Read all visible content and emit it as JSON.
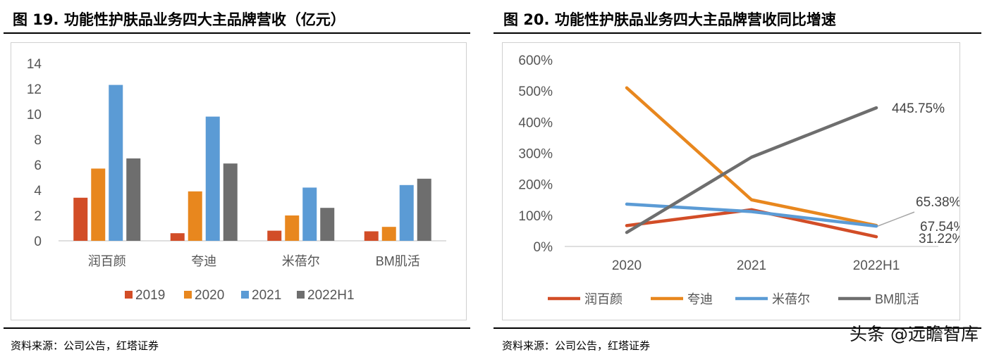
{
  "left": {
    "title": "图 19. 功能性护肤品业务四大主品牌营收（亿元）",
    "source": "资料来源：公司公告，红塔证券"
  },
  "right": {
    "title": "图 20. 功能性护肤品业务四大主品牌营收同比增速",
    "source": "资料来源：公司公告，红塔证券"
  },
  "watermark": "头条 @远瞻智库",
  "chart_data": [
    {
      "type": "bar",
      "categories": [
        "润百颜",
        "夸迪",
        "米蓓尔",
        "BM肌活"
      ],
      "series": [
        {
          "name": "2019",
          "values": [
            3.4,
            0.6,
            0.8,
            0.75
          ],
          "color": "#D24D27"
        },
        {
          "name": "2020",
          "values": [
            5.7,
            3.9,
            2.0,
            1.1
          ],
          "color": "#E8871E"
        },
        {
          "name": "2021",
          "values": [
            12.3,
            9.8,
            4.2,
            4.4
          ],
          "color": "#5B9BD5"
        },
        {
          "name": "2022H1",
          "values": [
            6.5,
            6.1,
            2.6,
            4.9
          ],
          "color": "#6E6E6E"
        }
      ],
      "yticks": [
        "0",
        "2",
        "4",
        "6",
        "8",
        "10",
        "12",
        "14"
      ],
      "ylim": [
        0,
        14
      ],
      "legend_position": "bottom",
      "grid": false
    },
    {
      "type": "line",
      "x": [
        "2020",
        "2021",
        "2022H1"
      ],
      "series": [
        {
          "name": "润百颜",
          "values": [
            67,
            118,
            31.22
          ],
          "color": "#D24D27"
        },
        {
          "name": "夸迪",
          "values": [
            510,
            150,
            67.54
          ],
          "color": "#E8871E"
        },
        {
          "name": "米蓓尔",
          "values": [
            136,
            112,
            65.38
          ],
          "color": "#5B9BD5"
        },
        {
          "name": "BM肌活",
          "values": [
            45,
            287,
            445.75
          ],
          "color": "#6E6E6E"
        }
      ],
      "yticks": [
        "0%",
        "100%",
        "200%",
        "300%",
        "400%",
        "500%",
        "600%"
      ],
      "ylim": [
        0,
        600
      ],
      "data_labels": [
        "445.75%",
        "65.38%",
        "67.54%",
        "31.22%"
      ],
      "legend_position": "bottom",
      "grid": false
    }
  ]
}
